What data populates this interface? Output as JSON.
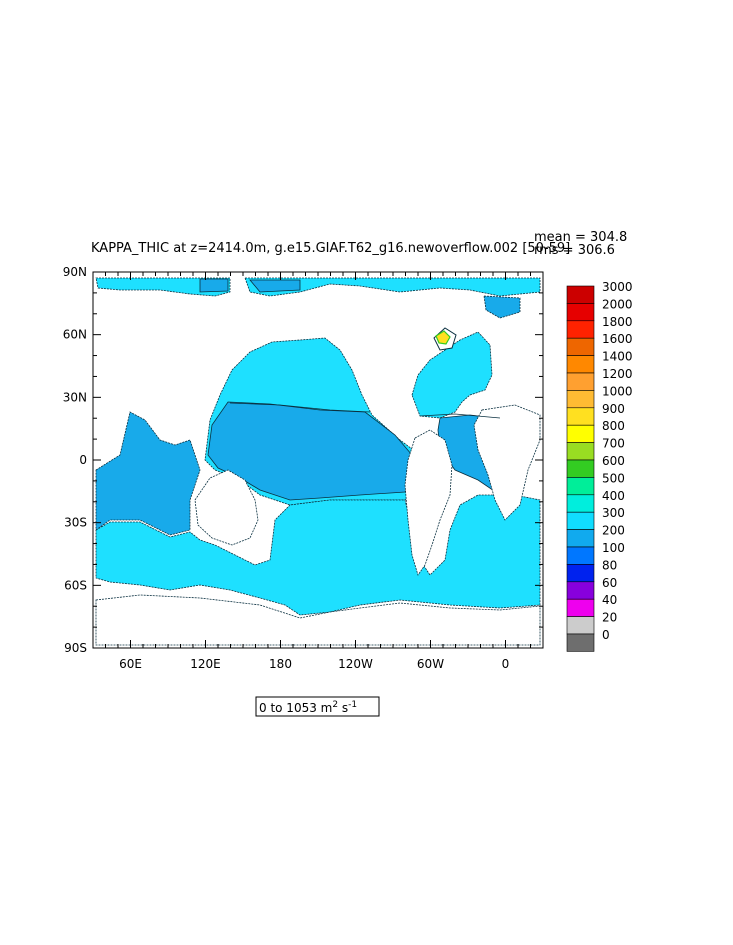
{
  "title": "KAPPA_THIC at z=2414.0m, g.e15.GIAF.T62_g16.newoverflow.002 [50-59]",
  "stats": {
    "mean": "mean = 304.8",
    "rms": "rms = 306.6"
  },
  "range_box": {
    "prefix": "0 to 1053 m",
    "sup1": "2",
    "mid": " s",
    "sup2": "-1"
  },
  "axes": {
    "lat_labels": [
      "90N",
      "60N",
      "30N",
      "0",
      "30S",
      "60S",
      "90S"
    ],
    "lon_labels": [
      "60E",
      "120E",
      "180",
      "120W",
      "60W",
      "0"
    ]
  },
  "colorbar": {
    "levels": [
      "3000",
      "2000",
      "1800",
      "1600",
      "1400",
      "1200",
      "1000",
      "900",
      "800",
      "700",
      "600",
      "500",
      "400",
      "300",
      "200",
      "100",
      "80",
      "60",
      "40",
      "20",
      "0"
    ],
    "colors": [
      "#cc0000",
      "#e60000",
      "#ff2200",
      "#ee6600",
      "#ff8800",
      "#ffa030",
      "#ffbb33",
      "#ffe020",
      "#ffff00",
      "#99dd22",
      "#33cc22",
      "#00ee99",
      "#00eedd",
      "#11ddff",
      "#11aaee",
      "#0077ff",
      "#0022ee",
      "#8800dd",
      "#ee00ee",
      "#cccccc",
      "#6e6e6e"
    ]
  },
  "colors": {
    "ocean_main": "#1ee0ff",
    "ocean_band": "#18aaea",
    "land": "#ffffff",
    "frame": "#000000"
  },
  "chart_data": {
    "type": "map",
    "variable": "KAPPA_THIC",
    "depth": "z=2414.0m",
    "experiment": "g.e15.GIAF.T62_g16.newoverflow.002",
    "years": "[50-59]",
    "mean": 304.8,
    "rms": 306.6,
    "value_range": [
      0,
      1053
    ],
    "units": "m2 s-1",
    "lat_range": [
      -90,
      90
    ],
    "lon_range": [
      30,
      390
    ],
    "contour_levels": [
      0,
      20,
      40,
      60,
      80,
      100,
      200,
      300,
      400,
      500,
      600,
      700,
      800,
      900,
      1000,
      1200,
      1400,
      1600,
      1800,
      2000,
      3000
    ]
  }
}
